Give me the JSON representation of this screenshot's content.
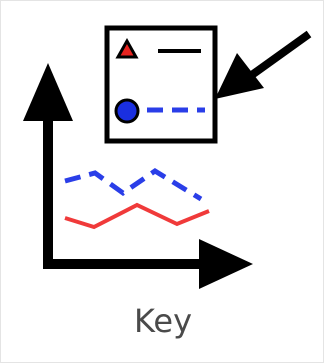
{
  "tile": {
    "label": "Key"
  },
  "icon": {
    "name": "chart-key-icon",
    "colors": {
      "stroke": "#000000",
      "marker_triangle": "#e8231f",
      "marker_circle": "#1a2fe0",
      "series_red": "#f03a3a",
      "series_blue": "#2a3ee8",
      "key_background": "#ffffff"
    }
  }
}
